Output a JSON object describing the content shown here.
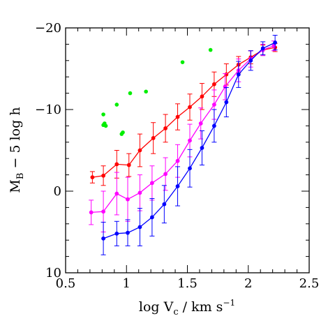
{
  "chart_data": {
    "type": "line",
    "title": "",
    "xlabel": "log V_c / km s⁻¹",
    "xlabel_parts": {
      "main": "log V",
      "sub": "c",
      "rest": " / km s",
      "sup": "−1"
    },
    "ylabel": "M_B − 5 log h",
    "ylabel_parts": {
      "main": "M",
      "sub": "B",
      "rest": " − 5 log h"
    },
    "xlim": [
      0.5,
      2.5
    ],
    "ylim": [
      10,
      -20
    ],
    "xticks": [
      0.5,
      1,
      1.5,
      2,
      2.5
    ],
    "xtick_labels": [
      "0.5",
      "1",
      "1.5",
      "2",
      "2.5"
    ],
    "yticks": [
      10,
      0,
      -10,
      -20
    ],
    "ytick_labels": [
      "10",
      "0",
      "−10",
      "−20"
    ],
    "grid": false,
    "series": [
      {
        "color": "#ff0000",
        "x": [
          0.72,
          0.81,
          0.92,
          1.02,
          1.11,
          1.22,
          1.32,
          1.42,
          1.52,
          1.62,
          1.72,
          1.82,
          1.92,
          2.02,
          2.12,
          2.22
        ],
        "y": [
          -1.7,
          -1.9,
          -3.3,
          -3.2,
          -5.0,
          -6.5,
          -7.7,
          -9.1,
          -10.3,
          -11.6,
          -13.1,
          -14.3,
          -15.5,
          -16.4,
          -17.3,
          -17.6
        ],
        "err": [
          0.7,
          1.2,
          1.7,
          1.4,
          2.0,
          1.9,
          1.7,
          1.6,
          1.6,
          1.6,
          1.5,
          1.3,
          1.0,
          0.8,
          0.6,
          0.5
        ]
      },
      {
        "color": "#ff00ff",
        "x": [
          0.71,
          0.81,
          0.92,
          1.01,
          1.11,
          1.21,
          1.32,
          1.42,
          1.52,
          1.61,
          1.72,
          1.81,
          1.92,
          2.02,
          2.12,
          2.21
        ],
        "y": [
          2.6,
          2.5,
          0.3,
          1.0,
          0.2,
          -1.0,
          -2.1,
          -3.7,
          -6.2,
          -8.3,
          -10.6,
          -12.8,
          -14.8,
          -16.2,
          -17.3,
          -17.8
        ],
        "err": [
          1.5,
          2.5,
          2.6,
          2.7,
          2.2,
          2.1,
          2.0,
          2.0,
          2.0,
          1.9,
          1.8,
          1.6,
          1.4,
          1.0,
          0.7,
          0.6
        ]
      },
      {
        "color": "#0000ff",
        "x": [
          0.81,
          0.92,
          1.01,
          1.11,
          1.21,
          1.31,
          1.42,
          1.52,
          1.62,
          1.72,
          1.82,
          1.92,
          2.02,
          2.12,
          2.22
        ],
        "y": [
          5.8,
          5.2,
          5.1,
          4.4,
          3.2,
          1.6,
          -0.6,
          -2.8,
          -5.3,
          -8.0,
          -10.9,
          -14.3,
          -16.0,
          -17.5,
          -18.2
        ],
        "err": [
          2.0,
          1.5,
          1.6,
          2.3,
          2.3,
          2.3,
          2.4,
          2.3,
          2.1,
          2.0,
          1.8,
          1.6,
          1.2,
          0.8,
          0.9
        ]
      }
    ],
    "scatter": {
      "color": "#00ee00",
      "x": [
        0.81,
        0.82,
        0.81,
        0.83,
        0.92,
        0.96,
        0.97,
        1.03,
        1.16,
        1.46,
        1.69
      ],
      "y": [
        -9.4,
        -8.3,
        -8.1,
        -8.0,
        -10.6,
        -7.0,
        -7.2,
        -12.0,
        -12.2,
        -15.8,
        -17.3
      ]
    },
    "colors": {
      "red": "#ff0000",
      "magenta": "#ff00ff",
      "blue": "#0000ff",
      "green": "#00ee00"
    }
  }
}
